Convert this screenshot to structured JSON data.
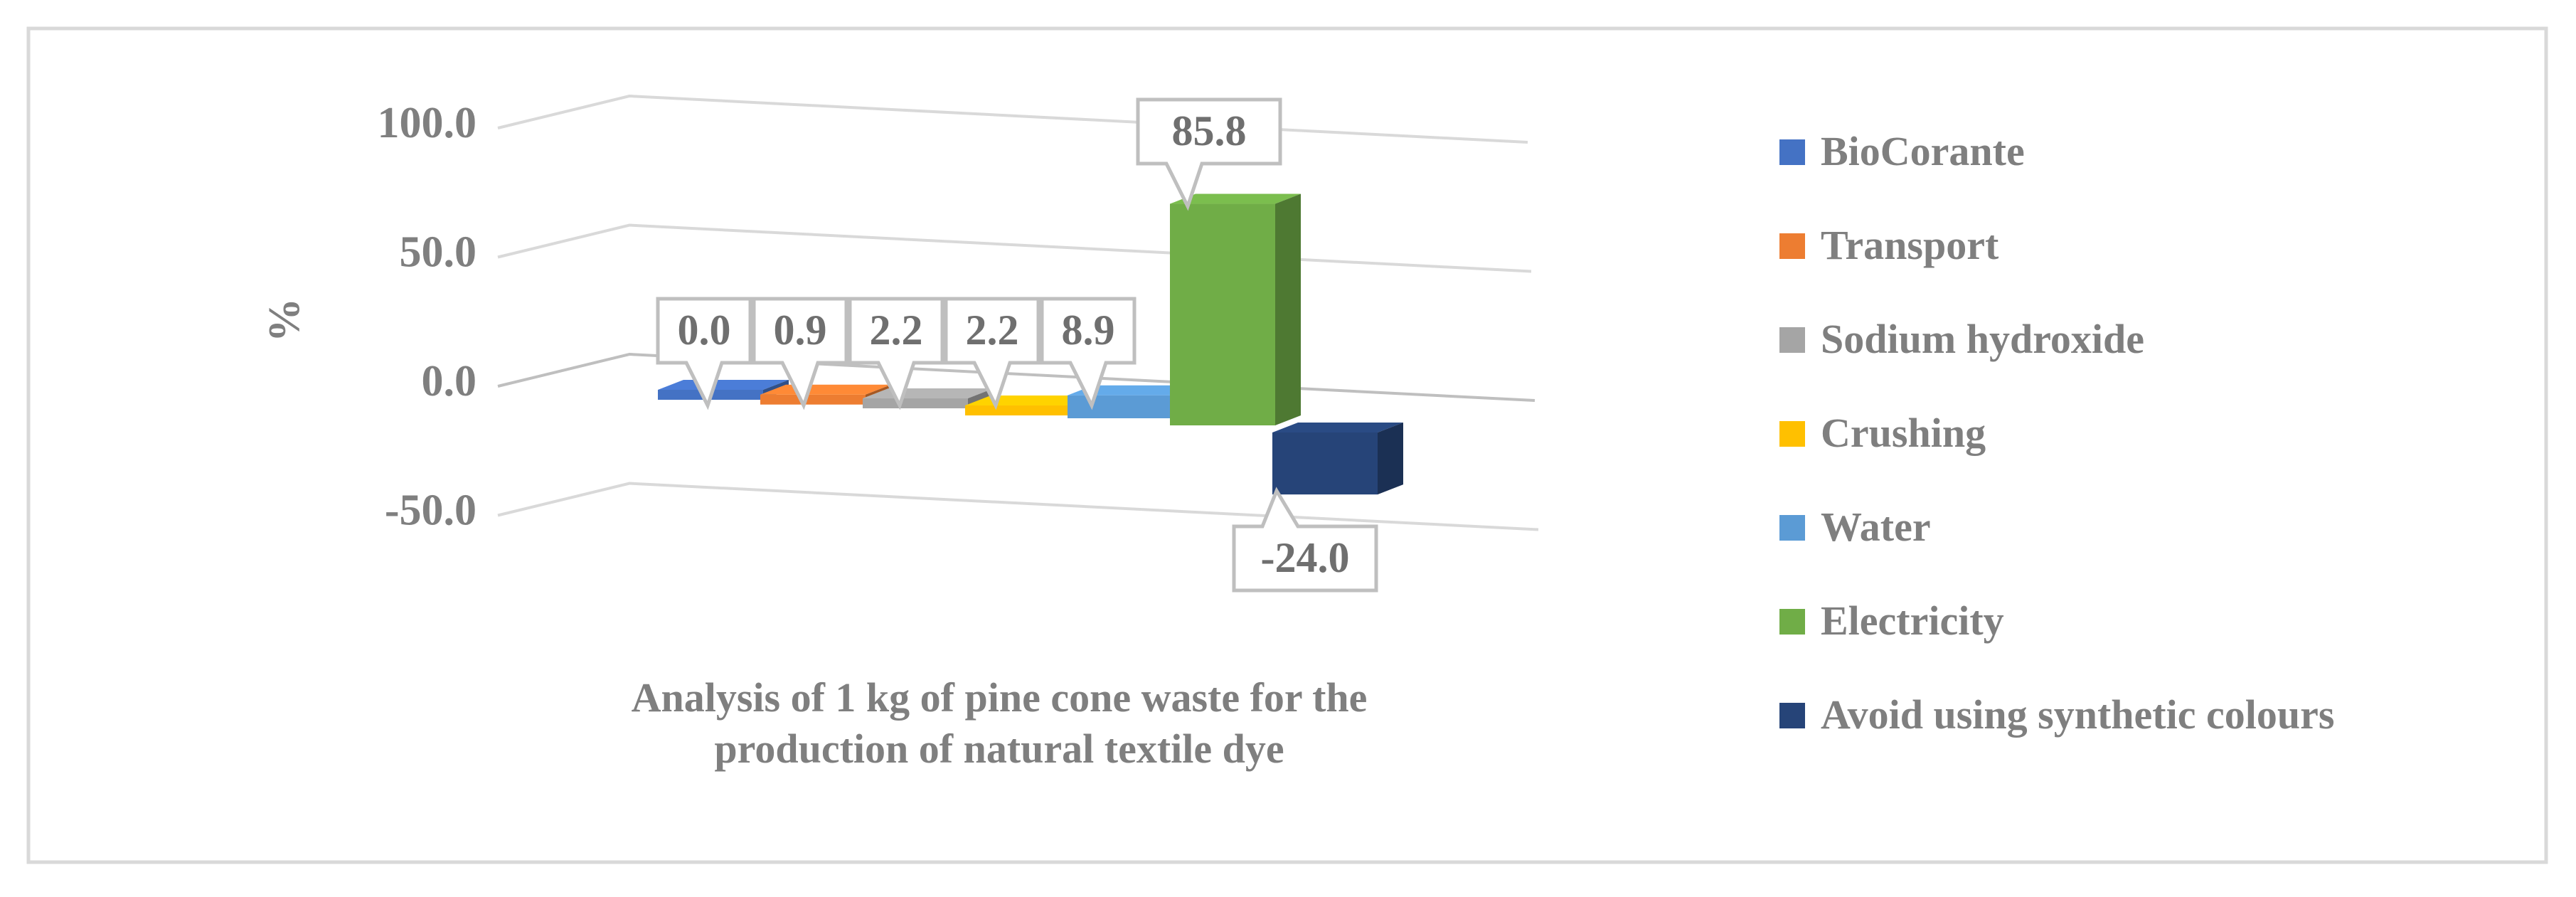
{
  "chart_data": {
    "type": "bar",
    "title": "",
    "xlabel": "",
    "ylabel": "%",
    "category": "Analysis of 1 kg of pine cone waste for the production of natural textile dye",
    "category_lines": [
      "Analysis of 1 kg of pine cone waste for the",
      "production of natural textile dye"
    ],
    "ylim": [
      -50,
      100
    ],
    "yticks": [
      "100.0",
      "50.0",
      "0.0",
      "-50.0"
    ],
    "grid": true,
    "legend_position": "right",
    "series": [
      {
        "name": "BioCorante",
        "value": 0.0,
        "label": "0.0",
        "color": "#4472C4"
      },
      {
        "name": "Transport",
        "value": 0.9,
        "label": "0.9",
        "color": "#ED7D31"
      },
      {
        "name": "Sodium hydroxide",
        "value": 2.2,
        "label": "2.2",
        "color": "#A5A5A5"
      },
      {
        "name": "Crushing",
        "value": 2.2,
        "label": "2.2",
        "color": "#FFC000"
      },
      {
        "name": "Water",
        "value": 8.9,
        "label": "8.9",
        "color": "#5B9BD5"
      },
      {
        "name": "Electricity",
        "value": 85.8,
        "label": "85.8",
        "color": "#70AD47"
      },
      {
        "name": "Avoid using synthetic colours",
        "value": -24.0,
        "label": "-24.0",
        "color": "#264478"
      }
    ]
  }
}
